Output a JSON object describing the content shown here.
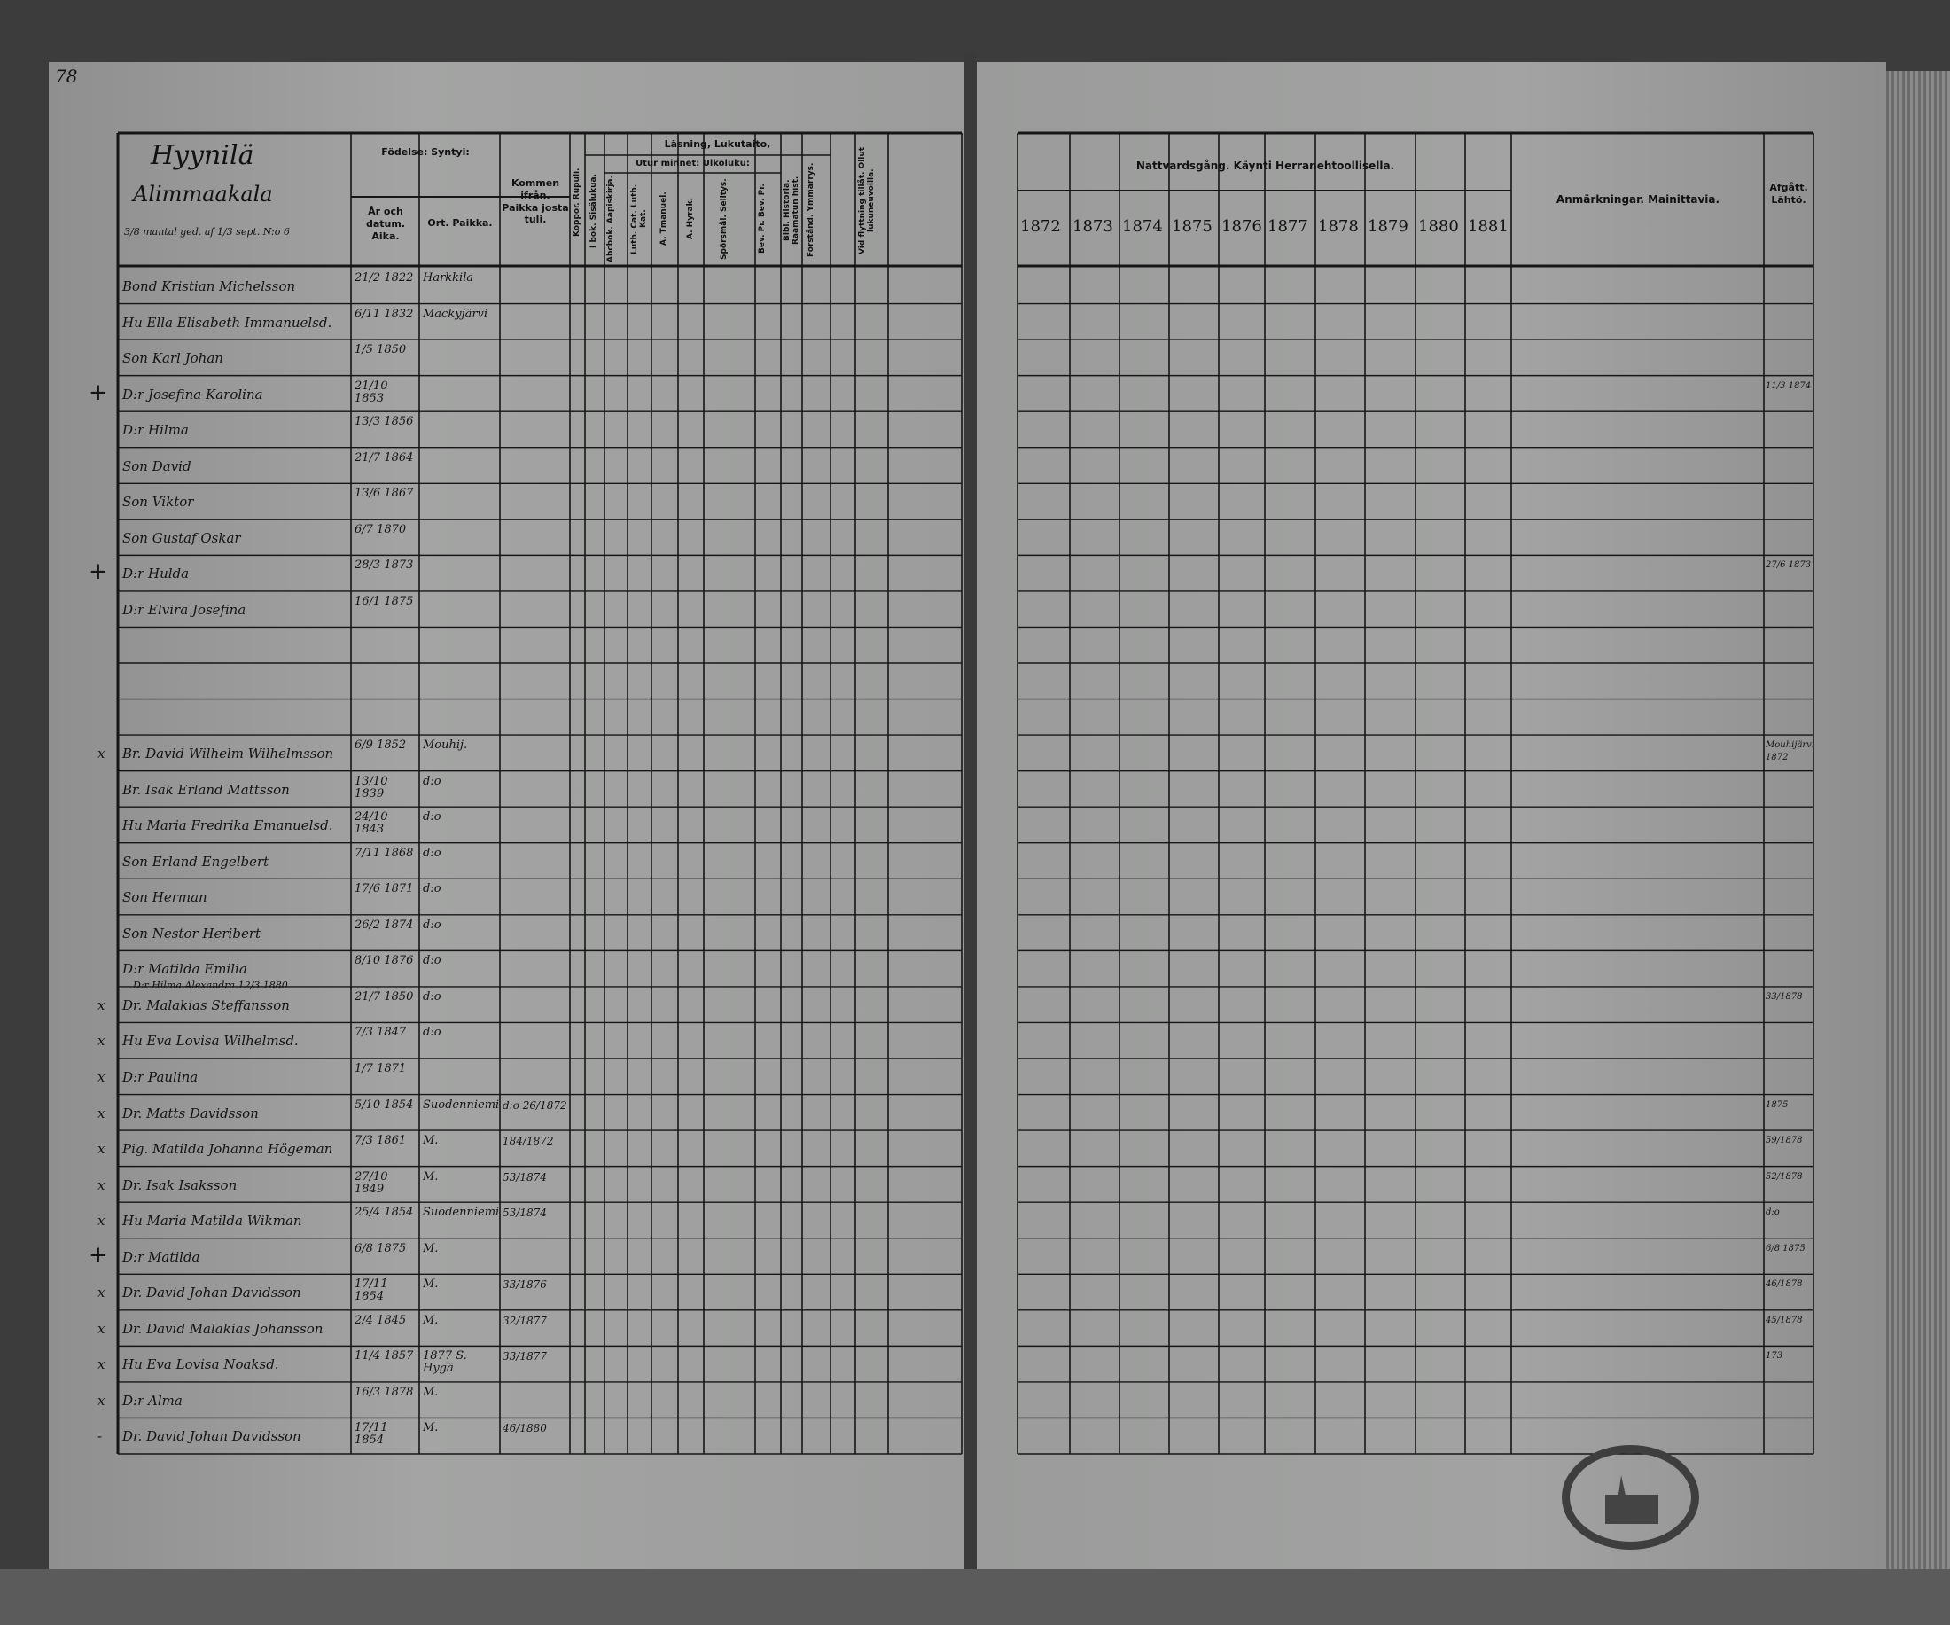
{
  "page_number": "78",
  "left_header": {
    "village": "Hyynilä",
    "farm": "Alimmaakala",
    "farm_note": "3/8 mantal ged. af 1/3 sept. N:o 6",
    "birth": "Födelse: Syntyi:",
    "birth_year": "År och datum. Aika.",
    "birth_place": "Ort. Paikka.",
    "moved_from": "Kommen ifrån. Paikka josta tuli.",
    "smallpox": "Koppor. Rupuli.",
    "reading": "Läsning, Lukutaito,",
    "reading_book": "I bok. Sisälukua.",
    "by_heart": "Utur minnet: Ulkoluku:",
    "abc_book": "Abcbok. Aapiskirja.",
    "catechism": "Luth. Cat. Luth. Kat.",
    "a_tmanuel": "A. Tmanuel.",
    "a_hyrak": "A. Hyrak.",
    "questions": "Spörsmål. Selitys.",
    "bev_pr": "Bev. Pr. Bev. Pr.",
    "bible_history": "Bibl. Historia. Raamatun hist.",
    "understanding": "Förstånd. Ymmärrys.",
    "moving_permit": "Vid flyttning tillåt. Ollut lukuneuvoilla."
  },
  "right_header": {
    "communion": "Nattvardsgång. Käynti Herranehtoollisella.",
    "years": [
      "1872",
      "1873",
      "1874",
      "1875",
      "1876",
      "1877",
      "1878",
      "1879",
      "1880",
      "1881"
    ],
    "remarks": "Anmärkningar. Mainittavia.",
    "departed": "Afgått. Lähtö."
  },
  "rows": [
    {
      "marker": "",
      "name": "Bond Kristian Michelsson",
      "date": "21/2 1822",
      "place": "Harkkila",
      "from": "",
      "departed": ""
    },
    {
      "marker": "",
      "name": "Hu Ella Elisabeth Immanuelsd.",
      "date": "6/11 1832",
      "place": "Mackyjärvi",
      "from": "",
      "departed": ""
    },
    {
      "marker": "",
      "name": "Son Karl Johan",
      "date": "1/5 1850",
      "place": "",
      "from": "",
      "departed": ""
    },
    {
      "marker": "+",
      "name": "D:r Josefina Karolina",
      "date": "21/10 1853",
      "place": "",
      "from": "",
      "departed": "11/3 1874"
    },
    {
      "marker": "",
      "name": "D:r Hilma",
      "date": "13/3 1856",
      "place": "",
      "from": "",
      "departed": ""
    },
    {
      "marker": "",
      "name": "Son David",
      "date": "21/7 1864",
      "place": "",
      "from": "",
      "departed": ""
    },
    {
      "marker": "",
      "name": "Son Viktor",
      "date": "13/6 1867",
      "place": "",
      "from": "",
      "departed": ""
    },
    {
      "marker": "",
      "name": "Son Gustaf Oskar",
      "date": "6/7 1870",
      "place": "",
      "from": "",
      "departed": ""
    },
    {
      "marker": "+",
      "name": "D:r Hulda",
      "date": "28/3 1873",
      "place": "",
      "from": "",
      "departed": "27/6 1873"
    },
    {
      "marker": "",
      "name": "D:r Elvira Josefina",
      "date": "16/1 1875",
      "place": "",
      "from": "",
      "departed": ""
    },
    {
      "marker": "",
      "name": "",
      "date": "",
      "place": "",
      "from": "",
      "departed": ""
    },
    {
      "marker": "",
      "name": "",
      "date": "",
      "place": "",
      "from": "",
      "departed": ""
    },
    {
      "marker": "",
      "name": "",
      "date": "",
      "place": "",
      "from": "",
      "departed": ""
    },
    {
      "marker": "x",
      "name": "Br. David Wilhelm Wilhelmsson",
      "date": "6/9 1852",
      "place": "Mouhij.",
      "from": "",
      "departed": "Mouhijärvi 1872"
    },
    {
      "marker": "",
      "name": "Br. Isak Erland Mattsson",
      "date": "13/10 1839",
      "place": "d:o",
      "from": "",
      "departed": ""
    },
    {
      "marker": "",
      "name": "Hu Maria Fredrika Emanuelsd.",
      "date": "24/10 1843",
      "place": "d:o",
      "from": "",
      "departed": ""
    },
    {
      "marker": "",
      "name": "Son Erland Engelbert",
      "date": "7/11 1868",
      "place": "d:o",
      "from": "",
      "departed": ""
    },
    {
      "marker": "",
      "name": "Son Herman",
      "date": "17/6 1871",
      "place": "d:o",
      "from": "",
      "departed": ""
    },
    {
      "marker": "",
      "name": "Son Nestor Heribert",
      "date": "26/2 1874",
      "place": "d:o",
      "from": "",
      "departed": ""
    },
    {
      "marker": "",
      "name": "D:r Matilda Emilia",
      "date": "8/10 1876",
      "place": "d:o",
      "from": "",
      "departed": ""
    },
    {
      "marker": "x",
      "name": "Dr. Malakias Steffansson",
      "date": "21/7 1850",
      "place": "d:o",
      "from": "",
      "departed": "33/1878"
    },
    {
      "marker": "x",
      "name": "Hu Eva Lovisa Wilhelmsd.",
      "date": "7/3 1847",
      "place": "d:o",
      "from": "",
      "departed": ""
    },
    {
      "marker": "x",
      "name": "D:r Paulina",
      "date": "1/7 1871",
      "place": "",
      "from": "",
      "departed": ""
    },
    {
      "marker": "x",
      "name": "Dr. Matts Davidsson",
      "date": "5/10 1854",
      "place": "Suodenniemi",
      "from": "d:o 26/1872",
      "departed": "1875"
    },
    {
      "marker": "x",
      "name": "Pig. Matilda Johanna Högeman",
      "date": "7/3 1861",
      "place": "M.",
      "from": "184/1872",
      "departed": "59/1878"
    },
    {
      "marker": "x",
      "name": "Dr. Isak Isaksson",
      "date": "27/10 1849",
      "place": "M.",
      "from": "53/1874",
      "departed": "52/1878"
    },
    {
      "marker": "x",
      "name": "Hu Maria Matilda Wikman",
      "date": "25/4 1854",
      "place": "Suodenniemi",
      "from": "53/1874",
      "departed": "d:o"
    },
    {
      "marker": "+",
      "name": "D:r Matilda",
      "date": "6/8 1875",
      "place": "M.",
      "from": "",
      "departed": "6/8 1875"
    },
    {
      "marker": "x",
      "name": "Dr. David Johan Davidsson",
      "date": "17/11 1854",
      "place": "M.",
      "from": "33/1876",
      "departed": "46/1878"
    },
    {
      "marker": "x",
      "name": "Dr. David Malakias Johansson",
      "date": "2/4 1845",
      "place": "M.",
      "from": "32/1877",
      "departed": "45/1878"
    },
    {
      "marker": "x",
      "name": "Hu Eva Lovisa Noaksd.",
      "date": "11/4 1857",
      "place": "1877 S. Hygä",
      "from": "33/1877",
      "departed": "173"
    },
    {
      "marker": "x",
      "name": "D:r Alma",
      "date": "16/3 1878",
      "place": "M.",
      "from": "",
      "departed": ""
    },
    {
      "marker": "-",
      "name": "Dr. David Johan Davidsson",
      "date": "17/11 1854",
      "place": "M.",
      "from": "46/1880",
      "departed": ""
    }
  ],
  "insert_note": "D:r Hilma Alexandra 12/3 1880",
  "colors": {
    "paper": "#999a99",
    "ink": "#111111",
    "background": "#3c3c3c"
  }
}
